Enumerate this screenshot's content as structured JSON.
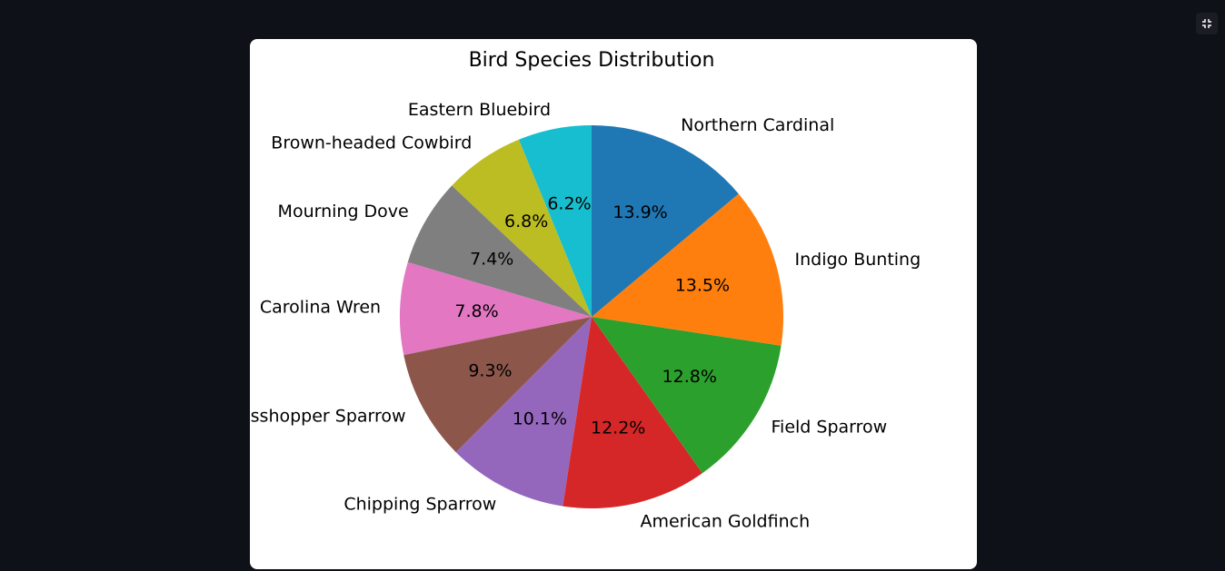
{
  "toolbar": {
    "fullscreen_icon": "exit-fullscreen-icon"
  },
  "chart_data": {
    "type": "pie",
    "title": "Bird Species Distribution",
    "start_angle_deg": 90,
    "direction": "counterclockwise",
    "labels": [
      "Eastern Bluebird",
      "Brown-headed Cowbird",
      "Mourning Dove",
      "Carolina Wren",
      "Grasshopper Sparrow",
      "Chipping Sparrow",
      "American Goldfinch",
      "Field Sparrow",
      "Indigo Bunting",
      "Northern Cardinal"
    ],
    "values": [
      6.2,
      6.8,
      7.4,
      7.8,
      9.3,
      10.1,
      12.2,
      12.8,
      13.5,
      13.9
    ],
    "pct_labels": [
      "6.2%",
      "6.8%",
      "7.4%",
      "7.8%",
      "9.3%",
      "10.1%",
      "12.2%",
      "12.8%",
      "13.5%",
      "13.9%"
    ],
    "colors": [
      "#17becf",
      "#bcbd22",
      "#7f7f7f",
      "#e377c2",
      "#8c564b",
      "#9467bd",
      "#d62728",
      "#2ca02c",
      "#ff7f0e",
      "#1f77b4"
    ]
  }
}
